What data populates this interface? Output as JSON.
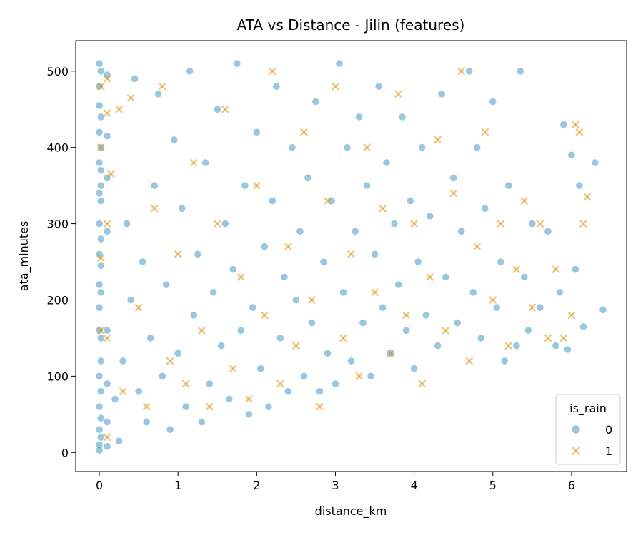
{
  "chart_data": {
    "type": "scatter",
    "title": "ATA vs Distance - Jilin (features)",
    "xlabel": "distance_km",
    "ylabel": "ata_minutes",
    "xlim": [
      -0.3,
      6.7
    ],
    "ylim": [
      -25,
      540
    ],
    "xticks": [
      0,
      1,
      2,
      3,
      4,
      5,
      6
    ],
    "yticks": [
      0,
      100,
      200,
      300,
      400,
      500
    ],
    "grid": false,
    "legend": {
      "title": "is_rain",
      "placement": "lower-right",
      "entries": [
        {
          "label": "0",
          "marker": "circle",
          "color": "#0173b2"
        },
        {
          "label": "1",
          "marker": "x",
          "color": "#de8f05"
        }
      ]
    },
    "series": [
      {
        "name": "0",
        "marker": "circle",
        "color": "#0173b2",
        "alpha": 0.4,
        "points": [
          [
            0.0,
            510
          ],
          [
            0.0,
            480
          ],
          [
            0.0,
            455
          ],
          [
            0.0,
            420
          ],
          [
            0.0,
            380
          ],
          [
            0.0,
            340
          ],
          [
            0.0,
            300
          ],
          [
            0.0,
            260
          ],
          [
            0.0,
            220
          ],
          [
            0.0,
            190
          ],
          [
            0.0,
            160
          ],
          [
            0.0,
            100
          ],
          [
            0.0,
            60
          ],
          [
            0.0,
            30
          ],
          [
            0.0,
            10
          ],
          [
            0.0,
            3
          ],
          [
            0.02,
            500
          ],
          [
            0.02,
            440
          ],
          [
            0.02,
            400
          ],
          [
            0.02,
            370
          ],
          [
            0.02,
            350
          ],
          [
            0.02,
            330
          ],
          [
            0.02,
            280
          ],
          [
            0.02,
            245
          ],
          [
            0.02,
            210
          ],
          [
            0.02,
            150
          ],
          [
            0.02,
            120
          ],
          [
            0.02,
            80
          ],
          [
            0.02,
            45
          ],
          [
            0.02,
            20
          ],
          [
            0.1,
            495
          ],
          [
            0.1,
            415
          ],
          [
            0.1,
            360
          ],
          [
            0.1,
            290
          ],
          [
            0.1,
            160
          ],
          [
            0.1,
            90
          ],
          [
            0.1,
            40
          ],
          [
            0.1,
            8
          ],
          [
            0.2,
            70
          ],
          [
            0.25,
            15
          ],
          [
            0.3,
            120
          ],
          [
            0.35,
            300
          ],
          [
            0.4,
            200
          ],
          [
            0.45,
            490
          ],
          [
            0.5,
            80
          ],
          [
            0.55,
            250
          ],
          [
            0.6,
            40
          ],
          [
            0.65,
            150
          ],
          [
            0.7,
            350
          ],
          [
            0.75,
            470
          ],
          [
            0.8,
            100
          ],
          [
            0.85,
            220
          ],
          [
            0.9,
            30
          ],
          [
            0.95,
            410
          ],
          [
            1.0,
            130
          ],
          [
            1.05,
            320
          ],
          [
            1.1,
            60
          ],
          [
            1.15,
            500
          ],
          [
            1.2,
            180
          ],
          [
            1.25,
            260
          ],
          [
            1.3,
            40
          ],
          [
            1.35,
            380
          ],
          [
            1.4,
            90
          ],
          [
            1.45,
            210
          ],
          [
            1.5,
            450
          ],
          [
            1.55,
            140
          ],
          [
            1.6,
            300
          ],
          [
            1.65,
            70
          ],
          [
            1.7,
            240
          ],
          [
            1.75,
            510
          ],
          [
            1.8,
            160
          ],
          [
            1.85,
            350
          ],
          [
            1.9,
            50
          ],
          [
            1.95,
            190
          ],
          [
            2.0,
            420
          ],
          [
            2.05,
            110
          ],
          [
            2.1,
            270
          ],
          [
            2.15,
            60
          ],
          [
            2.2,
            330
          ],
          [
            2.25,
            480
          ],
          [
            2.3,
            150
          ],
          [
            2.35,
            230
          ],
          [
            2.4,
            80
          ],
          [
            2.45,
            400
          ],
          [
            2.5,
            200
          ],
          [
            2.55,
            290
          ],
          [
            2.6,
            100
          ],
          [
            2.65,
            360
          ],
          [
            2.7,
            170
          ],
          [
            2.75,
            460
          ],
          [
            2.8,
            80
          ],
          [
            2.85,
            250
          ],
          [
            2.9,
            130
          ],
          [
            2.95,
            330
          ],
          [
            3.0,
            90
          ],
          [
            3.05,
            510
          ],
          [
            3.1,
            210
          ],
          [
            3.15,
            400
          ],
          [
            3.2,
            120
          ],
          [
            3.25,
            290
          ],
          [
            3.3,
            440
          ],
          [
            3.35,
            170
          ],
          [
            3.4,
            350
          ],
          [
            3.45,
            100
          ],
          [
            3.5,
            260
          ],
          [
            3.55,
            480
          ],
          [
            3.6,
            190
          ],
          [
            3.65,
            380
          ],
          [
            3.7,
            130
          ],
          [
            3.75,
            300
          ],
          [
            3.8,
            220
          ],
          [
            3.85,
            440
          ],
          [
            3.9,
            160
          ],
          [
            3.95,
            330
          ],
          [
            4.0,
            110
          ],
          [
            4.05,
            250
          ],
          [
            4.1,
            400
          ],
          [
            4.15,
            180
          ],
          [
            4.2,
            310
          ],
          [
            4.3,
            140
          ],
          [
            4.35,
            470
          ],
          [
            4.4,
            230
          ],
          [
            4.5,
            360
          ],
          [
            4.55,
            170
          ],
          [
            4.6,
            290
          ],
          [
            4.7,
            500
          ],
          [
            4.75,
            210
          ],
          [
            4.8,
            400
          ],
          [
            4.85,
            150
          ],
          [
            4.9,
            320
          ],
          [
            5.0,
            460
          ],
          [
            5.05,
            190
          ],
          [
            5.1,
            250
          ],
          [
            5.15,
            120
          ],
          [
            5.2,
            350
          ],
          [
            5.3,
            140
          ],
          [
            5.35,
            500
          ],
          [
            5.4,
            230
          ],
          [
            5.45,
            160
          ],
          [
            5.5,
            300
          ],
          [
            5.6,
            190
          ],
          [
            5.7,
            290
          ],
          [
            5.8,
            140
          ],
          [
            5.85,
            210
          ],
          [
            5.9,
            430
          ],
          [
            5.95,
            135
          ],
          [
            6.0,
            390
          ],
          [
            6.05,
            240
          ],
          [
            6.1,
            350
          ],
          [
            6.15,
            165
          ],
          [
            6.3,
            380
          ],
          [
            6.4,
            187
          ]
        ]
      },
      {
        "name": "1",
        "marker": "x",
        "color": "#de8f05",
        "alpha": 0.5,
        "points": [
          [
            0.02,
            480
          ],
          [
            0.02,
            400
          ],
          [
            0.02,
            255
          ],
          [
            0.02,
            160
          ],
          [
            0.1,
            490
          ],
          [
            0.1,
            445
          ],
          [
            0.1,
            300
          ],
          [
            0.1,
            150
          ],
          [
            0.1,
            20
          ],
          [
            0.15,
            365
          ],
          [
            0.25,
            450
          ],
          [
            0.3,
            80
          ],
          [
            0.4,
            465
          ],
          [
            0.5,
            190
          ],
          [
            0.6,
            60
          ],
          [
            0.7,
            320
          ],
          [
            0.8,
            480
          ],
          [
            0.9,
            120
          ],
          [
            1.0,
            260
          ],
          [
            1.1,
            90
          ],
          [
            1.2,
            380
          ],
          [
            1.3,
            160
          ],
          [
            1.4,
            60
          ],
          [
            1.5,
            300
          ],
          [
            1.6,
            450
          ],
          [
            1.7,
            110
          ],
          [
            1.8,
            230
          ],
          [
            1.9,
            70
          ],
          [
            2.0,
            350
          ],
          [
            2.1,
            180
          ],
          [
            2.2,
            500
          ],
          [
            2.3,
            90
          ],
          [
            2.4,
            270
          ],
          [
            2.5,
            140
          ],
          [
            2.6,
            420
          ],
          [
            2.7,
            200
          ],
          [
            2.8,
            60
          ],
          [
            2.9,
            330
          ],
          [
            3.0,
            480
          ],
          [
            3.1,
            150
          ],
          [
            3.2,
            260
          ],
          [
            3.3,
            100
          ],
          [
            3.4,
            400
          ],
          [
            3.5,
            210
          ],
          [
            3.6,
            320
          ],
          [
            3.7,
            130
          ],
          [
            3.8,
            470
          ],
          [
            3.9,
            180
          ],
          [
            4.0,
            300
          ],
          [
            4.1,
            90
          ],
          [
            4.2,
            230
          ],
          [
            4.3,
            410
          ],
          [
            4.4,
            160
          ],
          [
            4.5,
            340
          ],
          [
            4.6,
            500
          ],
          [
            4.7,
            120
          ],
          [
            4.8,
            270
          ],
          [
            4.9,
            420
          ],
          [
            5.0,
            200
          ],
          [
            5.1,
            300
          ],
          [
            5.2,
            140
          ],
          [
            5.3,
            240
          ],
          [
            5.4,
            330
          ],
          [
            5.5,
            190
          ],
          [
            5.6,
            300
          ],
          [
            5.7,
            150
          ],
          [
            5.8,
            240
          ],
          [
            5.9,
            150
          ],
          [
            6.0,
            180
          ],
          [
            6.05,
            430
          ],
          [
            6.1,
            420
          ],
          [
            6.15,
            300
          ],
          [
            6.2,
            335
          ]
        ]
      }
    ]
  }
}
